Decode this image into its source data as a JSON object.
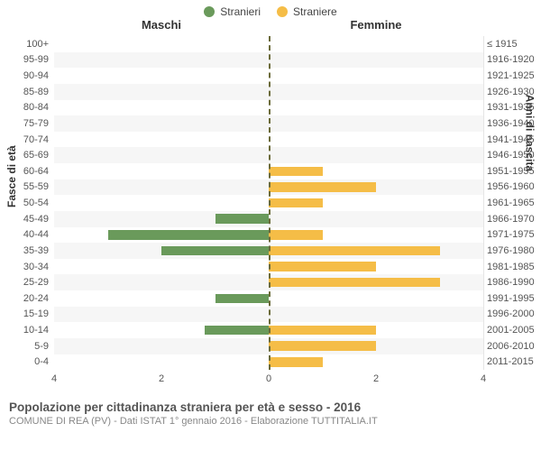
{
  "legend": {
    "male": {
      "label": "Stranieri",
      "color": "#6a9a5b"
    },
    "female": {
      "label": "Straniere",
      "color": "#f5bd47"
    }
  },
  "columns": {
    "left": "Maschi",
    "right": "Femmine"
  },
  "y_axis_left_title": "Fasce di età",
  "y_axis_right_title": "Anni di nascita",
  "x_axis": {
    "min": -4,
    "max": 4,
    "ticks": [
      4,
      2,
      0,
      2,
      4
    ],
    "tick_positions": [
      -4,
      -2,
      0,
      2,
      4
    ]
  },
  "grid_color": "#e5e5e5",
  "center_dash_color": "#6b6b3a",
  "background_color": "#ffffff",
  "alt_row_color": "#f6f6f6",
  "bar_fill_male": "#6a9a5b",
  "bar_fill_female": "#f5bd47",
  "rows": [
    {
      "age": "100+",
      "birth": "≤ 1915",
      "m": 0,
      "f": 0
    },
    {
      "age": "95-99",
      "birth": "1916-1920",
      "m": 0,
      "f": 0
    },
    {
      "age": "90-94",
      "birth": "1921-1925",
      "m": 0,
      "f": 0
    },
    {
      "age": "85-89",
      "birth": "1926-1930",
      "m": 0,
      "f": 0
    },
    {
      "age": "80-84",
      "birth": "1931-1935",
      "m": 0,
      "f": 0
    },
    {
      "age": "75-79",
      "birth": "1936-1940",
      "m": 0,
      "f": 0
    },
    {
      "age": "70-74",
      "birth": "1941-1945",
      "m": 0,
      "f": 0
    },
    {
      "age": "65-69",
      "birth": "1946-1950",
      "m": 0,
      "f": 0
    },
    {
      "age": "60-64",
      "birth": "1951-1955",
      "m": 0,
      "f": 1.0
    },
    {
      "age": "55-59",
      "birth": "1956-1960",
      "m": 0,
      "f": 2.0
    },
    {
      "age": "50-54",
      "birth": "1961-1965",
      "m": 0,
      "f": 1.0
    },
    {
      "age": "45-49",
      "birth": "1966-1970",
      "m": 1.0,
      "f": 0
    },
    {
      "age": "40-44",
      "birth": "1971-1975",
      "m": 3.0,
      "f": 1.0
    },
    {
      "age": "35-39",
      "birth": "1976-1980",
      "m": 2.0,
      "f": 3.2
    },
    {
      "age": "30-34",
      "birth": "1981-1985",
      "m": 0,
      "f": 2.0
    },
    {
      "age": "25-29",
      "birth": "1986-1990",
      "m": 0,
      "f": 3.2
    },
    {
      "age": "20-24",
      "birth": "1991-1995",
      "m": 1.0,
      "f": 0
    },
    {
      "age": "15-19",
      "birth": "1996-2000",
      "m": 0,
      "f": 0
    },
    {
      "age": "10-14",
      "birth": "2001-2005",
      "m": 1.2,
      "f": 2.0
    },
    {
      "age": "5-9",
      "birth": "2006-2010",
      "m": 0,
      "f": 2.0
    },
    {
      "age": "0-4",
      "birth": "2011-2015",
      "m": 0,
      "f": 1.0
    }
  ],
  "footer": {
    "title": "Popolazione per cittadinanza straniera per età e sesso - 2016",
    "subtitle": "COMUNE DI REA (PV) - Dati ISTAT 1° gennaio 2016 - Elaborazione TUTTITALIA.IT"
  }
}
